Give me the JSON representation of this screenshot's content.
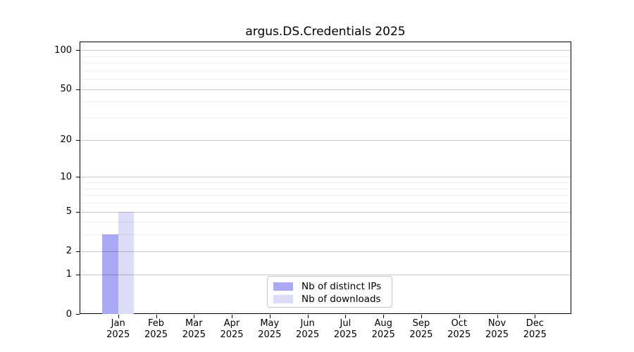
{
  "chart_data": {
    "type": "bar",
    "title": "argus.DS.Credentials 2025",
    "categories": [
      "Jan 2025",
      "Feb 2025",
      "Mar 2025",
      "Apr 2025",
      "May 2025",
      "Jun 2025",
      "Jul 2025",
      "Aug 2025",
      "Sep 2025",
      "Oct 2025",
      "Nov 2025",
      "Dec 2025"
    ],
    "series": [
      {
        "name": "Nb of distinct IPs",
        "color": "#a9a9f6",
        "values": [
          3,
          0,
          0,
          0,
          0,
          0,
          0,
          0,
          0,
          0,
          0,
          0
        ]
      },
      {
        "name": "Nb of downloads",
        "color": "#dcdcf8",
        "values": [
          5,
          0,
          0,
          0,
          0,
          0,
          0,
          0,
          0,
          0,
          0,
          0
        ]
      }
    ],
    "xlabel": "",
    "ylabel": "",
    "yscale": "log(1+value)",
    "y_ticks": [
      0,
      1,
      2,
      5,
      10,
      20,
      50,
      100
    ],
    "y_minor_gridlines": [
      3,
      4,
      6,
      7,
      8,
      9,
      30,
      40,
      60,
      70,
      80,
      90
    ],
    "ylim": [
      0,
      115
    ],
    "grid": true,
    "legend_position": "lower center"
  }
}
